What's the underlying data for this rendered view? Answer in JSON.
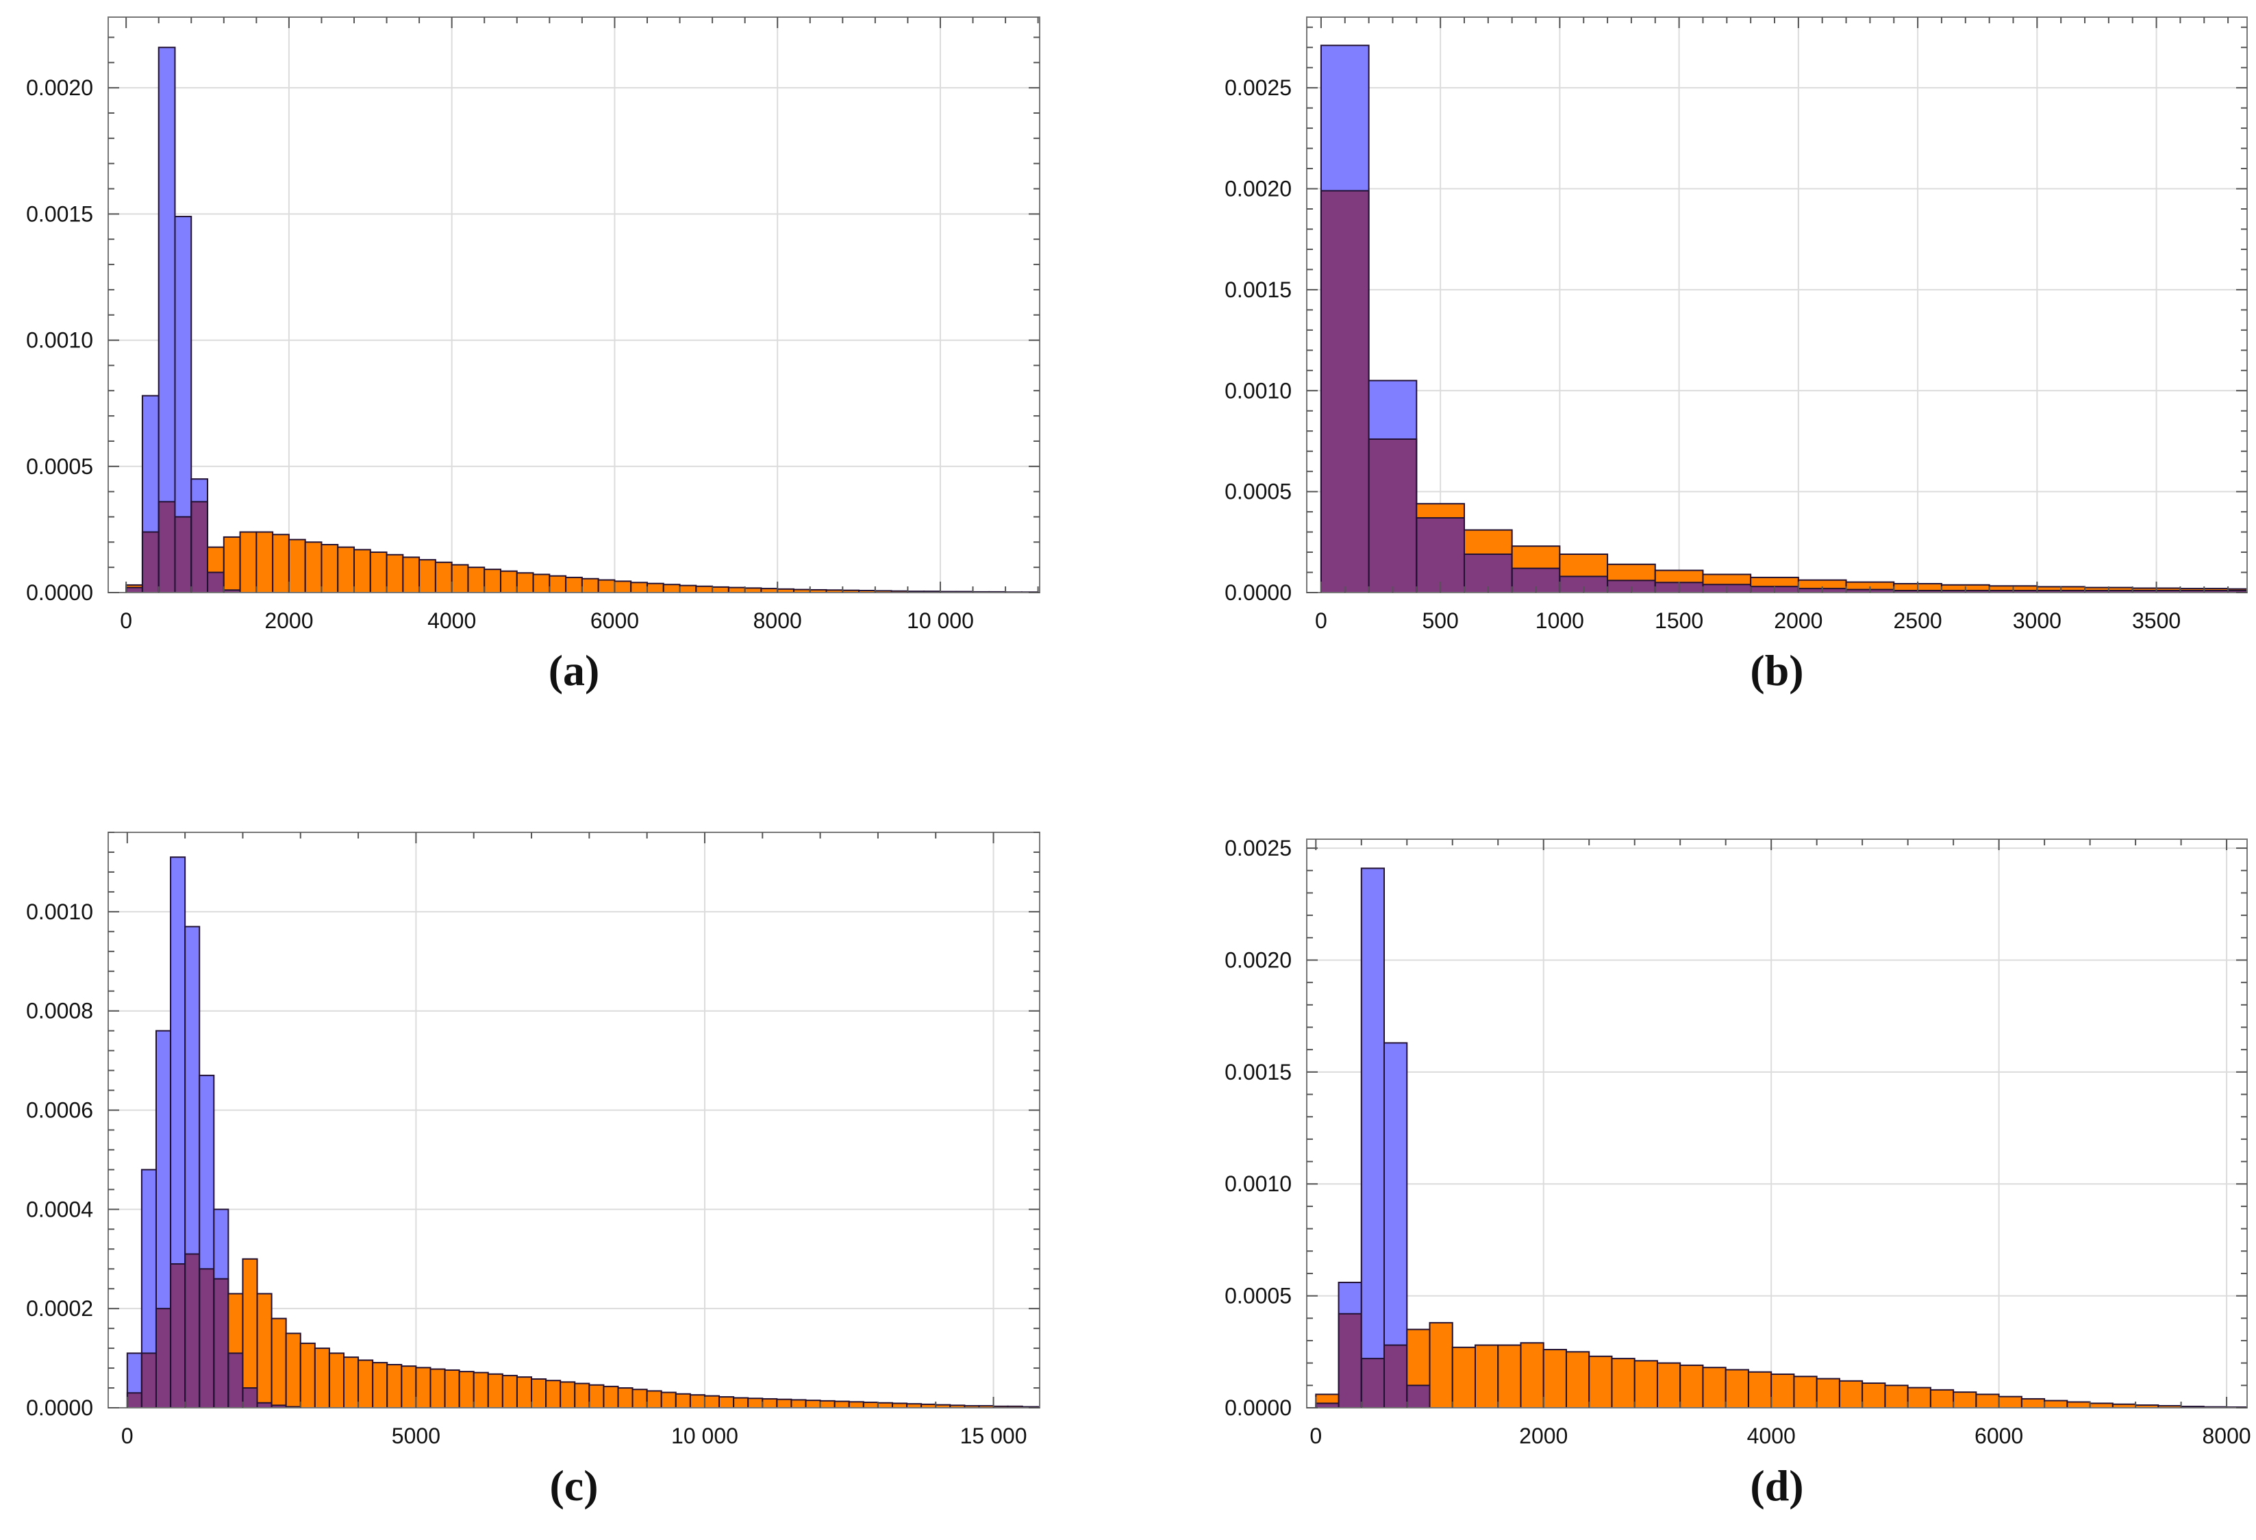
{
  "colors": {
    "orange": "#ff8000",
    "blue": "#7f7fff",
    "overlap": "#7f3b7e",
    "edge": "#221133",
    "grid": "#dcdcdc",
    "frame": "#777777"
  },
  "chart_data": [
    {
      "type": "bar",
      "caption": "(a)",
      "bin_start": 0,
      "bin_width": 200,
      "xlim": [
        -220,
        11220
      ],
      "ylim": [
        0,
        0.00228
      ],
      "xticks": [
        0,
        2000,
        4000,
        6000,
        8000,
        10000
      ],
      "xtick_labels": [
        "0",
        "2000",
        "4000",
        "6000",
        "8000",
        "10 000"
      ],
      "yticks": [
        0,
        0.0005,
        0.001,
        0.0015,
        0.002
      ],
      "ytick_labels": [
        "0.0000",
        "0.0005",
        "0.0010",
        "0.0015",
        "0.0020"
      ],
      "series": [
        {
          "name": "orange",
          "values": [
            3e-05,
            0.00024,
            0.00036,
            0.0003,
            0.00036,
            0.00018,
            0.00022,
            0.00024,
            0.00024,
            0.00023,
            0.00021,
            0.0002,
            0.00019,
            0.00018,
            0.00017,
            0.00016,
            0.00015,
            0.00014,
            0.00013,
            0.00012,
            0.00011,
            0.0001,
            9.2e-05,
            8.5e-05,
            7.8e-05,
            7.2e-05,
            6.6e-05,
            6e-05,
            5.5e-05,
            5e-05,
            4.5e-05,
            4e-05,
            3.6e-05,
            3.2e-05,
            2.8e-05,
            2.5e-05,
            2.2e-05,
            2e-05,
            1.8e-05,
            1.6e-05,
            1.4e-05,
            1.2e-05,
            1.1e-05,
            1e-05,
            9e-06,
            8e-06,
            7e-06,
            6e-06,
            5e-06,
            5e-06,
            4e-06,
            4e-06,
            3e-06,
            3e-06,
            2e-06,
            2e-06
          ]
        },
        {
          "name": "blue",
          "values": [
            2e-05,
            0.00078,
            0.00216,
            0.00149,
            0.00045,
            8e-05,
            1e-05
          ]
        }
      ]
    },
    {
      "type": "bar",
      "caption": "(b)",
      "bin_start": 0,
      "bin_width": 200,
      "xlim": [
        -60,
        3880
      ],
      "ylim": [
        0,
        0.00285
      ],
      "xticks": [
        0,
        500,
        1000,
        1500,
        2000,
        2500,
        3000,
        3500
      ],
      "xtick_labels": [
        "0",
        "500",
        "1000",
        "1500",
        "2000",
        "2500",
        "3000",
        "3500"
      ],
      "yticks": [
        0,
        0.0005,
        0.001,
        0.0015,
        0.002,
        0.0025
      ],
      "ytick_labels": [
        "0.0000",
        "0.0005",
        "0.0010",
        "0.0015",
        "0.0020",
        "0.0025"
      ],
      "series": [
        {
          "name": "orange",
          "values": [
            0.00199,
            0.00076,
            0.00044,
            0.00031,
            0.00023,
            0.00019,
            0.00014,
            0.00011,
            9e-05,
            7.5e-05,
            6.2e-05,
            5.2e-05,
            4.4e-05,
            3.8e-05,
            3.3e-05,
            2.9e-05,
            2.5e-05,
            2.2e-05,
            2e-05,
            1.8e-05
          ]
        },
        {
          "name": "blue",
          "values": [
            0.00271,
            0.00105,
            0.00037,
            0.00019,
            0.00012,
            8e-05,
            6e-05,
            5e-05,
            4e-05,
            3e-05,
            2e-05,
            1.5e-05,
            1e-05,
            1e-05,
            1e-05,
            1e-05,
            1e-05,
            1e-05,
            1e-05,
            1e-05
          ]
        }
      ]
    },
    {
      "type": "bar",
      "caption": "(c)",
      "bin_start": 0,
      "bin_width": 250,
      "xlim": [
        -330,
        15800
      ],
      "ylim": [
        0,
        0.00116
      ],
      "xticks": [
        0,
        5000,
        10000,
        15000
      ],
      "xtick_labels": [
        "0",
        "5000",
        "10 000",
        "15 000"
      ],
      "yticks": [
        0,
        0.0002,
        0.0004,
        0.0006,
        0.0008,
        0.001
      ],
      "ytick_labels": [
        "0.0000",
        "0.0002",
        "0.0004",
        "0.0006",
        "0.0008",
        "0.0010"
      ],
      "series": [
        {
          "name": "orange",
          "values": [
            3e-05,
            0.00011,
            0.0002,
            0.00029,
            0.00031,
            0.00028,
            0.00026,
            0.00023,
            0.0003,
            0.00023,
            0.00018,
            0.00015,
            0.00013,
            0.00012,
            0.00011,
            0.000102,
            9.6e-05,
            9.1e-05,
            8.7e-05,
            8.4e-05,
            8.1e-05,
            7.8e-05,
            7.6e-05,
            7.3e-05,
            7.1e-05,
            6.8e-05,
            6.5e-05,
            6.2e-05,
            5.8e-05,
            5.5e-05,
            5.2e-05,
            4.9e-05,
            4.6e-05,
            4.3e-05,
            4e-05,
            3.7e-05,
            3.4e-05,
            3.1e-05,
            2.8e-05,
            2.6e-05,
            2.4e-05,
            2.2e-05,
            2e-05,
            1.9e-05,
            1.8e-05,
            1.7e-05,
            1.6e-05,
            1.5e-05,
            1.4e-05,
            1.3e-05,
            1.2e-05,
            1.1e-05,
            1e-05,
            9e-06,
            8e-06,
            7e-06,
            6e-06,
            5e-06,
            4e-06,
            4e-06,
            3e-06,
            3e-06,
            2e-06,
            2e-06
          ]
        },
        {
          "name": "blue",
          "values": [
            0.00011,
            0.00048,
            0.00076,
            0.00111,
            0.00097,
            0.00067,
            0.0004,
            0.00011,
            4e-05,
            1e-05,
            5e-06,
            2e-06
          ]
        }
      ]
    },
    {
      "type": "bar",
      "caption": "(d)",
      "bin_start": 0,
      "bin_width": 200,
      "xlim": [
        -80,
        8180
      ],
      "ylim": [
        0,
        0.00254
      ],
      "xticks": [
        0,
        2000,
        4000,
        6000,
        8000
      ],
      "xtick_labels": [
        "0",
        "2000",
        "4000",
        "6000",
        "8000"
      ],
      "yticks": [
        0,
        0.0005,
        0.001,
        0.0015,
        0.002,
        0.0025
      ],
      "ytick_labels": [
        "0.0000",
        "0.0005",
        "0.0010",
        "0.0015",
        "0.0020",
        "0.0025"
      ],
      "series": [
        {
          "name": "orange",
          "values": [
            6e-05,
            0.00042,
            0.00022,
            0.00028,
            0.00035,
            0.00038,
            0.00027,
            0.00028,
            0.00028,
            0.00029,
            0.00026,
            0.00025,
            0.00023,
            0.00022,
            0.00021,
            0.0002,
            0.00019,
            0.00018,
            0.00017,
            0.00016,
            0.00015,
            0.00014,
            0.00013,
            0.00012,
            0.00011,
            0.0001,
            9e-05,
            8e-05,
            7e-05,
            6e-05,
            5e-05,
            4e-05,
            3.2e-05,
            2.6e-05,
            2e-05,
            1.6e-05,
            1.2e-05,
            9e-06,
            6e-06,
            4e-06,
            3e-06
          ]
        },
        {
          "name": "blue",
          "values": [
            2e-05,
            0.00056,
            0.00241,
            0.00163,
            0.0001
          ]
        }
      ]
    }
  ]
}
